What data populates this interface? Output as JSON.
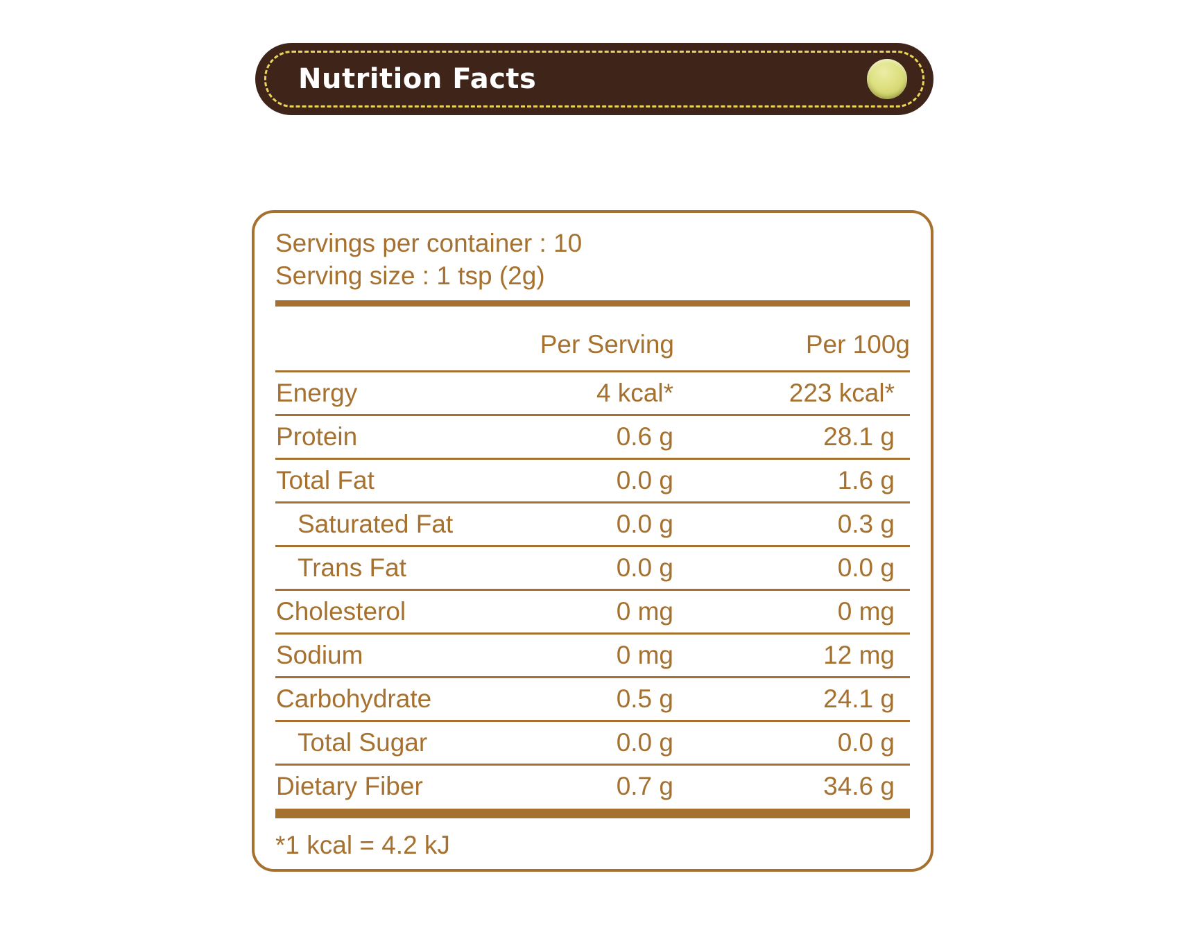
{
  "banner": {
    "title": "Nutrition Facts"
  },
  "panel": {
    "serving_lines": {
      "per_container": "Servings per container : 10",
      "serving_size": "Serving size : 1 tsp (2g)"
    },
    "table": {
      "headers": {
        "label": "",
        "per_serving": "Per Serving",
        "per_100g": "Per 100g"
      },
      "rows": [
        {
          "label": "Energy",
          "per_serving": "4 kcal*",
          "per_100g": "223 kcal*",
          "indent": false
        },
        {
          "label": "Protein",
          "per_serving": "0.6 g",
          "per_100g": "28.1 g",
          "indent": false
        },
        {
          "label": "Total Fat",
          "per_serving": "0.0 g",
          "per_100g": "1.6 g",
          "indent": false
        },
        {
          "label": "Saturated Fat",
          "per_serving": "0.0 g",
          "per_100g": "0.3 g",
          "indent": true
        },
        {
          "label": "Trans Fat",
          "per_serving": "0.0 g",
          "per_100g": "0.0 g",
          "indent": true
        },
        {
          "label": "Cholesterol",
          "per_serving": "0 mg",
          "per_100g": "0 mg",
          "indent": false
        },
        {
          "label": "Sodium",
          "per_serving": "0 mg",
          "per_100g": "12 mg",
          "indent": false
        },
        {
          "label": "Carbohydrate",
          "per_serving": "0.5 g",
          "per_100g": "24.1 g",
          "indent": false
        },
        {
          "label": "Total Sugar",
          "per_serving": "0.0 g",
          "per_100g": "0.0 g",
          "indent": true
        },
        {
          "label": "Dietary Fiber",
          "per_serving": "0.7 g",
          "per_100g": "34.6 g",
          "indent": false
        }
      ]
    },
    "footnote": "*1 kcal = 4.2 kJ"
  },
  "colors": {
    "brown": "#A6712F",
    "banner_background": "#3F241A",
    "stitch_yellow": "#EBD45A",
    "dot_yellow_green": "#D8DA74",
    "title_white": "#FFFFFF"
  }
}
